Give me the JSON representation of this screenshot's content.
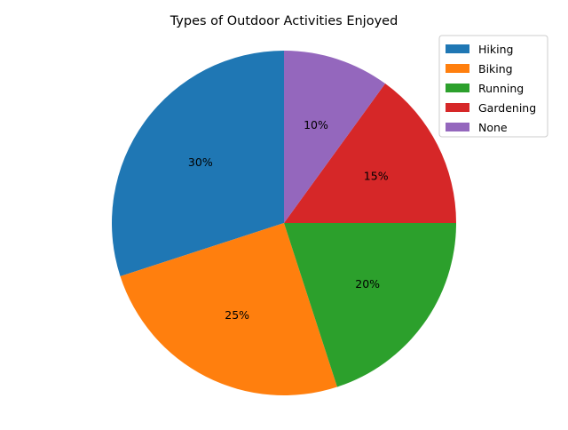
{
  "chart_data": {
    "type": "pie",
    "title": "Types of Outdoor Activities Enjoyed",
    "categories": [
      "Hiking",
      "Biking",
      "Running",
      "Gardening",
      "None"
    ],
    "values": [
      30,
      25,
      20,
      15,
      10
    ],
    "labels": [
      "30%",
      "25%",
      "20%",
      "15%",
      "10%"
    ],
    "colors": [
      "#1f77b4",
      "#ff7f0e",
      "#2ca02c",
      "#d62728",
      "#9467bd"
    ],
    "start_angle_deg": 90,
    "direction": "counterclockwise",
    "legend": {
      "placement": "top-right",
      "entries": [
        "Hiking",
        "Biking",
        "Running",
        "Gardening",
        "None"
      ]
    }
  }
}
